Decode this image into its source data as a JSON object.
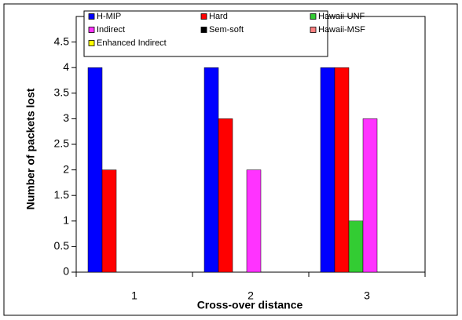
{
  "chart_data": {
    "type": "bar",
    "x_label": "Cross-over distance",
    "y_label": "Number of packets lost",
    "categories": [
      "1",
      "2",
      "3"
    ],
    "series": [
      {
        "name": "H-MIP",
        "color": "#0000ff",
        "values": [
          4,
          4,
          4
        ]
      },
      {
        "name": "Hard",
        "color": "#ff0000",
        "values": [
          2,
          3,
          4
        ]
      },
      {
        "name": "Hawaii-UNF",
        "color": "#33cc33",
        "values": [
          0,
          0,
          1
        ]
      },
      {
        "name": "Indirect",
        "color": "#ff33ff",
        "values": [
          0,
          2,
          3
        ]
      },
      {
        "name": "Sem-soft",
        "color": "#000000",
        "values": [
          0,
          0,
          0
        ]
      },
      {
        "name": "Hawaii-MSF",
        "color": "#ff8080",
        "values": [
          0,
          0,
          0
        ]
      },
      {
        "name": "Enhanced Indirect",
        "color": "#ffff00",
        "values": [
          0,
          0,
          0
        ]
      }
    ],
    "ylim": [
      0,
      5
    ],
    "yticks": [
      0,
      0.5,
      1,
      1.5,
      2,
      2.5,
      3,
      3.5,
      4,
      4.5
    ],
    "grid": false
  }
}
